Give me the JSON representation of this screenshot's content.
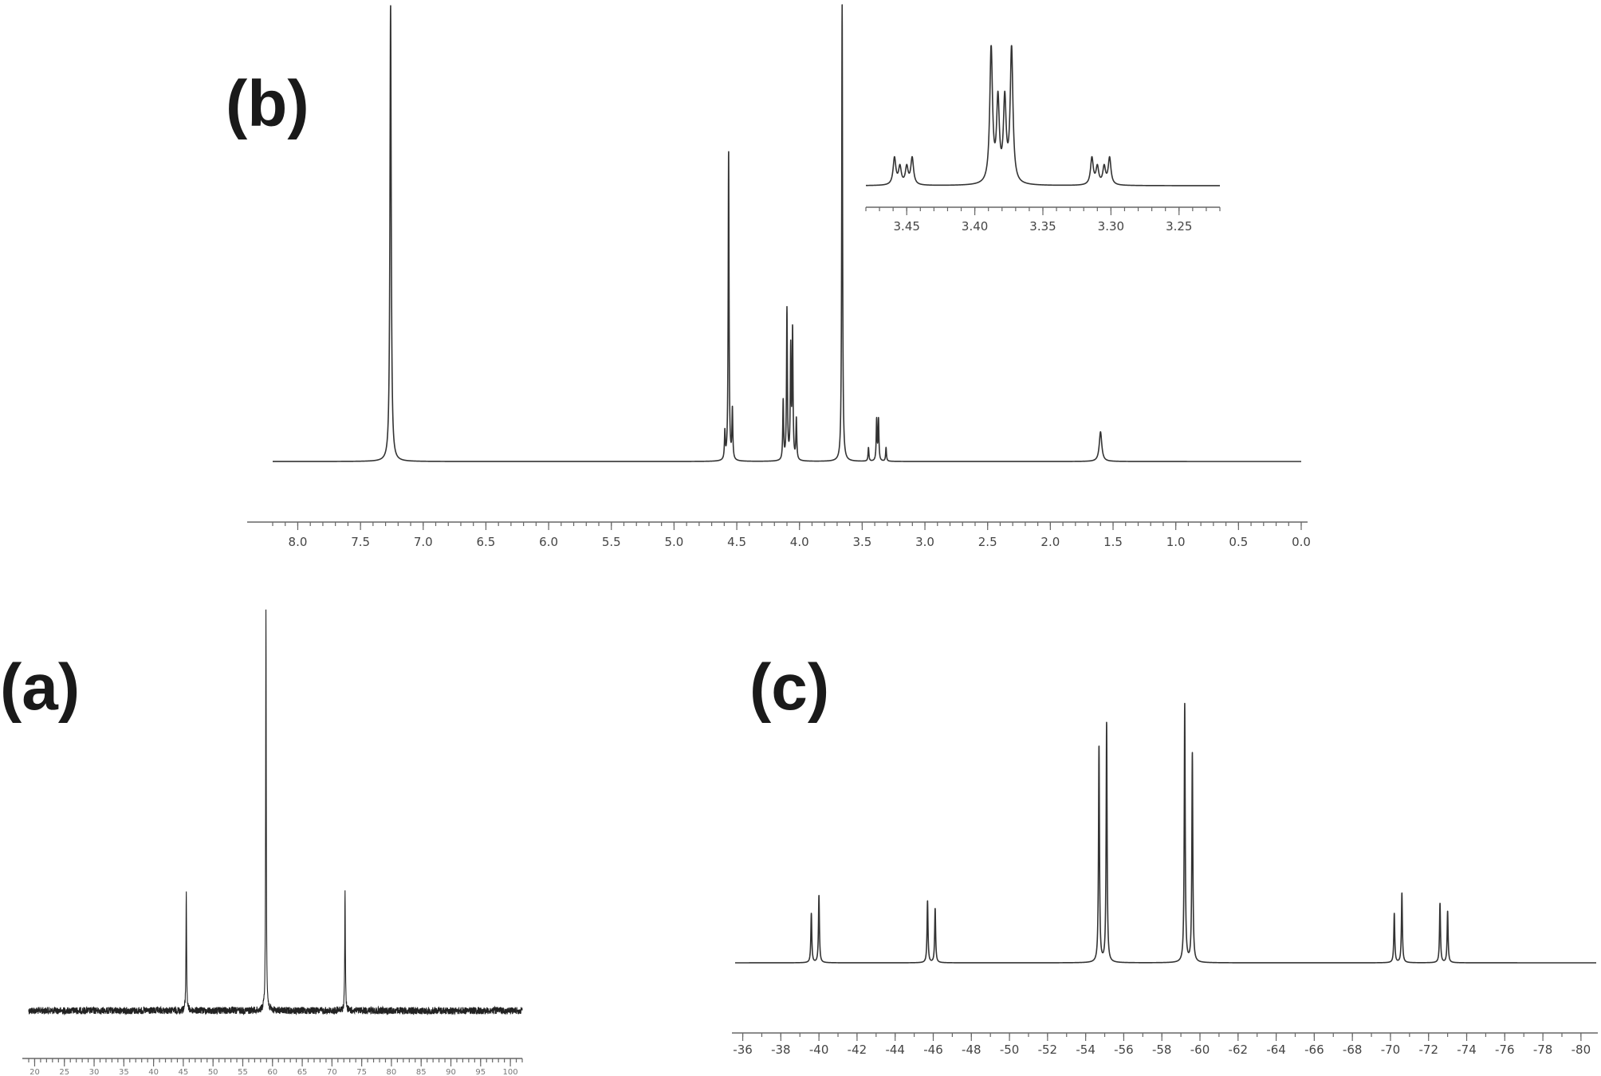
{
  "chart_data": [
    {
      "id": "b",
      "panel_label": "(b)",
      "type": "line",
      "title": "",
      "xlabel": "",
      "ylabel": "",
      "xlim": [
        8.2,
        0.0
      ],
      "x_reversed": true,
      "ticks": [
        "8.0",
        "7.5",
        "7.0",
        "6.5",
        "6.0",
        "5.5",
        "5.0",
        "4.5",
        "4.0",
        "3.5",
        "3.0",
        "2.5",
        "2.0",
        "1.5",
        "1.0",
        "0.5",
        "0.0"
      ],
      "tick_values": [
        8.0,
        7.5,
        7.0,
        6.5,
        6.0,
        5.5,
        5.0,
        4.5,
        4.0,
        3.5,
        3.0,
        2.5,
        2.0,
        1.5,
        1.0,
        0.5,
        0.0
      ],
      "peaks": [
        {
          "x": 7.26,
          "h": 1.0,
          "w": 0.006
        },
        {
          "x": 4.595,
          "h": 0.06,
          "w": 0.004
        },
        {
          "x": 4.565,
          "h": 0.68,
          "w": 0.004
        },
        {
          "x": 4.535,
          "h": 0.11,
          "w": 0.004
        },
        {
          "x": 4.13,
          "h": 0.13,
          "w": 0.004
        },
        {
          "x": 4.1,
          "h": 0.33,
          "w": 0.004
        },
        {
          "x": 4.07,
          "h": 0.24,
          "w": 0.004
        },
        {
          "x": 4.055,
          "h": 0.28,
          "w": 0.004
        },
        {
          "x": 4.025,
          "h": 0.09,
          "w": 0.004
        },
        {
          "x": 3.66,
          "h": 1.0,
          "w": 0.004
        },
        {
          "x": 3.45,
          "h": 0.03,
          "w": 0.004
        },
        {
          "x": 3.385,
          "h": 0.09,
          "w": 0.004
        },
        {
          "x": 3.37,
          "h": 0.09,
          "w": 0.004
        },
        {
          "x": 3.31,
          "h": 0.03,
          "w": 0.004
        },
        {
          "x": 1.6,
          "h": 0.065,
          "w": 0.012
        }
      ],
      "inset": {
        "xlim": [
          3.48,
          3.22
        ],
        "ticks": [
          "3.45",
          "3.40",
          "3.35",
          "3.30",
          "3.25"
        ],
        "tick_values": [
          3.45,
          3.4,
          3.35,
          3.3,
          3.25
        ],
        "peaks": [
          {
            "x": 3.459,
            "h": 0.2,
            "w": 0.0012
          },
          {
            "x": 3.455,
            "h": 0.13,
            "w": 0.0012
          },
          {
            "x": 3.45,
            "h": 0.13,
            "w": 0.0012
          },
          {
            "x": 3.446,
            "h": 0.2,
            "w": 0.0012
          },
          {
            "x": 3.388,
            "h": 1.0,
            "w": 0.0012
          },
          {
            "x": 3.383,
            "h": 0.6,
            "w": 0.0012
          },
          {
            "x": 3.378,
            "h": 0.6,
            "w": 0.0012
          },
          {
            "x": 3.373,
            "h": 1.0,
            "w": 0.0012
          },
          {
            "x": 3.314,
            "h": 0.2,
            "w": 0.0012
          },
          {
            "x": 3.31,
            "h": 0.13,
            "w": 0.0012
          },
          {
            "x": 3.305,
            "h": 0.13,
            "w": 0.0012
          },
          {
            "x": 3.301,
            "h": 0.2,
            "w": 0.0012
          }
        ]
      }
    },
    {
      "id": "a",
      "panel_label": "(a)",
      "type": "line",
      "title": "",
      "xlabel": "",
      "ylabel": "",
      "xlim": [
        19,
        102
      ],
      "x_reversed": false,
      "ticks": [
        "20",
        "25",
        "30",
        "35",
        "40",
        "45",
        "50",
        "55",
        "60",
        "65",
        "70",
        "75",
        "80",
        "85",
        "90",
        "95",
        "100"
      ],
      "tick_values": [
        20,
        25,
        30,
        35,
        40,
        45,
        50,
        55,
        60,
        65,
        70,
        75,
        80,
        85,
        90,
        95,
        100
      ],
      "peaks": [
        {
          "x": 45.5,
          "h": 0.3,
          "w": 0.06
        },
        {
          "x": 58.9,
          "h": 1.0,
          "w": 0.06
        },
        {
          "x": 72.2,
          "h": 0.3,
          "w": 0.06
        }
      ],
      "noise": true
    },
    {
      "id": "c",
      "panel_label": "(c)",
      "type": "line",
      "title": "",
      "xlabel": "",
      "ylabel": "",
      "xlim": [
        -35.6,
        -80.8
      ],
      "x_reversed": true,
      "ticks": [
        "-36",
        "-38",
        "-40",
        "-42",
        "-44",
        "-46",
        "-48",
        "-50",
        "-52",
        "-54",
        "-56",
        "-58",
        "-60",
        "-62",
        "-64",
        "-66",
        "-68",
        "-70",
        "-72",
        "-74",
        "-76",
        "-78",
        "-80"
      ],
      "tick_values": [
        -36,
        -38,
        -40,
        -42,
        -44,
        -46,
        -48,
        -50,
        -52,
        -54,
        -56,
        -58,
        -60,
        -62,
        -64,
        -66,
        -68,
        -70,
        -72,
        -74,
        -76,
        -78,
        -80
      ],
      "peaks": [
        {
          "x": -39.6,
          "h": 0.19,
          "w": 0.03
        },
        {
          "x": -40.0,
          "h": 0.26,
          "w": 0.03
        },
        {
          "x": -45.7,
          "h": 0.24,
          "w": 0.03
        },
        {
          "x": -46.1,
          "h": 0.21,
          "w": 0.03
        },
        {
          "x": -54.7,
          "h": 0.84,
          "w": 0.03
        },
        {
          "x": -55.1,
          "h": 0.93,
          "w": 0.03
        },
        {
          "x": -59.2,
          "h": 1.0,
          "w": 0.03
        },
        {
          "x": -59.6,
          "h": 0.81,
          "w": 0.03
        },
        {
          "x": -70.2,
          "h": 0.19,
          "w": 0.03
        },
        {
          "x": -70.6,
          "h": 0.27,
          "w": 0.03
        },
        {
          "x": -72.6,
          "h": 0.23,
          "w": 0.03
        },
        {
          "x": -73.0,
          "h": 0.2,
          "w": 0.03
        }
      ]
    }
  ]
}
